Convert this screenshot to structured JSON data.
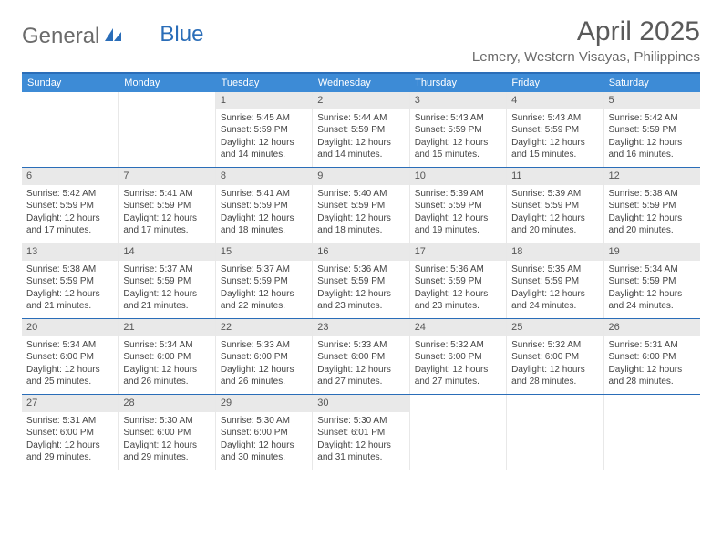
{
  "logo": {
    "text1": "General",
    "text2": "Blue"
  },
  "header": {
    "month_title": "April 2025",
    "location": "Lemery, Western Visayas, Philippines"
  },
  "colors": {
    "brand_blue": "#2a6db8",
    "header_blue": "#3d8bd6",
    "daynum_bg": "#e9e9e9",
    "text": "#444444",
    "title_text": "#5a5a5a"
  },
  "weekdays": [
    "Sunday",
    "Monday",
    "Tuesday",
    "Wednesday",
    "Thursday",
    "Friday",
    "Saturday"
  ],
  "weeks": [
    [
      {
        "empty": true
      },
      {
        "empty": true
      },
      {
        "day": "1",
        "sunrise": "Sunrise: 5:45 AM",
        "sunset": "Sunset: 5:59 PM",
        "day1": "Daylight: 12 hours",
        "day2": "and 14 minutes."
      },
      {
        "day": "2",
        "sunrise": "Sunrise: 5:44 AM",
        "sunset": "Sunset: 5:59 PM",
        "day1": "Daylight: 12 hours",
        "day2": "and 14 minutes."
      },
      {
        "day": "3",
        "sunrise": "Sunrise: 5:43 AM",
        "sunset": "Sunset: 5:59 PM",
        "day1": "Daylight: 12 hours",
        "day2": "and 15 minutes."
      },
      {
        "day": "4",
        "sunrise": "Sunrise: 5:43 AM",
        "sunset": "Sunset: 5:59 PM",
        "day1": "Daylight: 12 hours",
        "day2": "and 15 minutes."
      },
      {
        "day": "5",
        "sunrise": "Sunrise: 5:42 AM",
        "sunset": "Sunset: 5:59 PM",
        "day1": "Daylight: 12 hours",
        "day2": "and 16 minutes."
      }
    ],
    [
      {
        "day": "6",
        "sunrise": "Sunrise: 5:42 AM",
        "sunset": "Sunset: 5:59 PM",
        "day1": "Daylight: 12 hours",
        "day2": "and 17 minutes."
      },
      {
        "day": "7",
        "sunrise": "Sunrise: 5:41 AM",
        "sunset": "Sunset: 5:59 PM",
        "day1": "Daylight: 12 hours",
        "day2": "and 17 minutes."
      },
      {
        "day": "8",
        "sunrise": "Sunrise: 5:41 AM",
        "sunset": "Sunset: 5:59 PM",
        "day1": "Daylight: 12 hours",
        "day2": "and 18 minutes."
      },
      {
        "day": "9",
        "sunrise": "Sunrise: 5:40 AM",
        "sunset": "Sunset: 5:59 PM",
        "day1": "Daylight: 12 hours",
        "day2": "and 18 minutes."
      },
      {
        "day": "10",
        "sunrise": "Sunrise: 5:39 AM",
        "sunset": "Sunset: 5:59 PM",
        "day1": "Daylight: 12 hours",
        "day2": "and 19 minutes."
      },
      {
        "day": "11",
        "sunrise": "Sunrise: 5:39 AM",
        "sunset": "Sunset: 5:59 PM",
        "day1": "Daylight: 12 hours",
        "day2": "and 20 minutes."
      },
      {
        "day": "12",
        "sunrise": "Sunrise: 5:38 AM",
        "sunset": "Sunset: 5:59 PM",
        "day1": "Daylight: 12 hours",
        "day2": "and 20 minutes."
      }
    ],
    [
      {
        "day": "13",
        "sunrise": "Sunrise: 5:38 AM",
        "sunset": "Sunset: 5:59 PM",
        "day1": "Daylight: 12 hours",
        "day2": "and 21 minutes."
      },
      {
        "day": "14",
        "sunrise": "Sunrise: 5:37 AM",
        "sunset": "Sunset: 5:59 PM",
        "day1": "Daylight: 12 hours",
        "day2": "and 21 minutes."
      },
      {
        "day": "15",
        "sunrise": "Sunrise: 5:37 AM",
        "sunset": "Sunset: 5:59 PM",
        "day1": "Daylight: 12 hours",
        "day2": "and 22 minutes."
      },
      {
        "day": "16",
        "sunrise": "Sunrise: 5:36 AM",
        "sunset": "Sunset: 5:59 PM",
        "day1": "Daylight: 12 hours",
        "day2": "and 23 minutes."
      },
      {
        "day": "17",
        "sunrise": "Sunrise: 5:36 AM",
        "sunset": "Sunset: 5:59 PM",
        "day1": "Daylight: 12 hours",
        "day2": "and 23 minutes."
      },
      {
        "day": "18",
        "sunrise": "Sunrise: 5:35 AM",
        "sunset": "Sunset: 5:59 PM",
        "day1": "Daylight: 12 hours",
        "day2": "and 24 minutes."
      },
      {
        "day": "19",
        "sunrise": "Sunrise: 5:34 AM",
        "sunset": "Sunset: 5:59 PM",
        "day1": "Daylight: 12 hours",
        "day2": "and 24 minutes."
      }
    ],
    [
      {
        "day": "20",
        "sunrise": "Sunrise: 5:34 AM",
        "sunset": "Sunset: 6:00 PM",
        "day1": "Daylight: 12 hours",
        "day2": "and 25 minutes."
      },
      {
        "day": "21",
        "sunrise": "Sunrise: 5:34 AM",
        "sunset": "Sunset: 6:00 PM",
        "day1": "Daylight: 12 hours",
        "day2": "and 26 minutes."
      },
      {
        "day": "22",
        "sunrise": "Sunrise: 5:33 AM",
        "sunset": "Sunset: 6:00 PM",
        "day1": "Daylight: 12 hours",
        "day2": "and 26 minutes."
      },
      {
        "day": "23",
        "sunrise": "Sunrise: 5:33 AM",
        "sunset": "Sunset: 6:00 PM",
        "day1": "Daylight: 12 hours",
        "day2": "and 27 minutes."
      },
      {
        "day": "24",
        "sunrise": "Sunrise: 5:32 AM",
        "sunset": "Sunset: 6:00 PM",
        "day1": "Daylight: 12 hours",
        "day2": "and 27 minutes."
      },
      {
        "day": "25",
        "sunrise": "Sunrise: 5:32 AM",
        "sunset": "Sunset: 6:00 PM",
        "day1": "Daylight: 12 hours",
        "day2": "and 28 minutes."
      },
      {
        "day": "26",
        "sunrise": "Sunrise: 5:31 AM",
        "sunset": "Sunset: 6:00 PM",
        "day1": "Daylight: 12 hours",
        "day2": "and 28 minutes."
      }
    ],
    [
      {
        "day": "27",
        "sunrise": "Sunrise: 5:31 AM",
        "sunset": "Sunset: 6:00 PM",
        "day1": "Daylight: 12 hours",
        "day2": "and 29 minutes."
      },
      {
        "day": "28",
        "sunrise": "Sunrise: 5:30 AM",
        "sunset": "Sunset: 6:00 PM",
        "day1": "Daylight: 12 hours",
        "day2": "and 29 minutes."
      },
      {
        "day": "29",
        "sunrise": "Sunrise: 5:30 AM",
        "sunset": "Sunset: 6:00 PM",
        "day1": "Daylight: 12 hours",
        "day2": "and 30 minutes."
      },
      {
        "day": "30",
        "sunrise": "Sunrise: 5:30 AM",
        "sunset": "Sunset: 6:01 PM",
        "day1": "Daylight: 12 hours",
        "day2": "and 31 minutes."
      },
      {
        "empty": true
      },
      {
        "empty": true
      },
      {
        "empty": true
      }
    ]
  ]
}
